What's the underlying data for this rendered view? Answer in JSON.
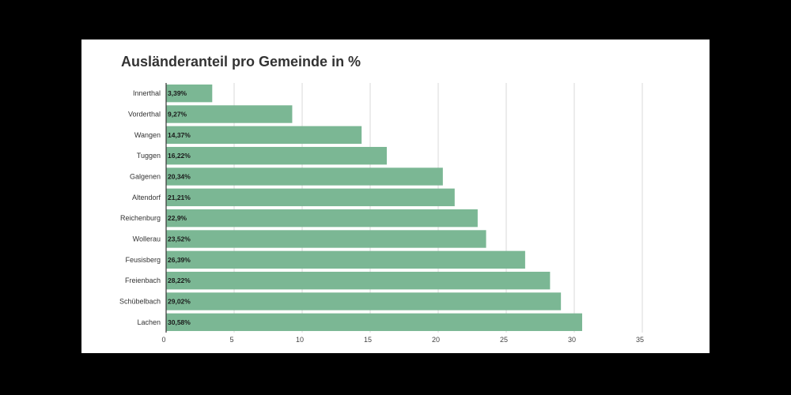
{
  "chart_data": {
    "type": "bar",
    "orientation": "horizontal",
    "title": "Ausländeranteil pro Gemeinde in %",
    "categories": [
      "Innerthal",
      "Vorderthal",
      "Wangen",
      "Tuggen",
      "Galgenen",
      "Altendorf",
      "Reichenburg",
      "Wollerau",
      "Feusisberg",
      "Freienbach",
      "Schübelbach",
      "Lachen"
    ],
    "values": [
      3.39,
      9.27,
      14.37,
      16.22,
      20.34,
      21.21,
      22.9,
      23.52,
      26.39,
      28.22,
      29.02,
      30.58
    ],
    "data_labels": [
      "3,39%",
      "9,27%",
      "14,37%",
      "16,22%",
      "20,34%",
      "21,21%",
      "22,9%",
      "23,52%",
      "26,39%",
      "28,22%",
      "29,02%",
      "30,58%"
    ],
    "xticks": [
      "0",
      "5",
      "10",
      "15",
      "20",
      "25",
      "30",
      "35"
    ],
    "xlim": [
      0,
      35
    ],
    "grid": true,
    "bar_color": "#7bb794",
    "background": "#ffffff",
    "page_background": "#000000"
  }
}
